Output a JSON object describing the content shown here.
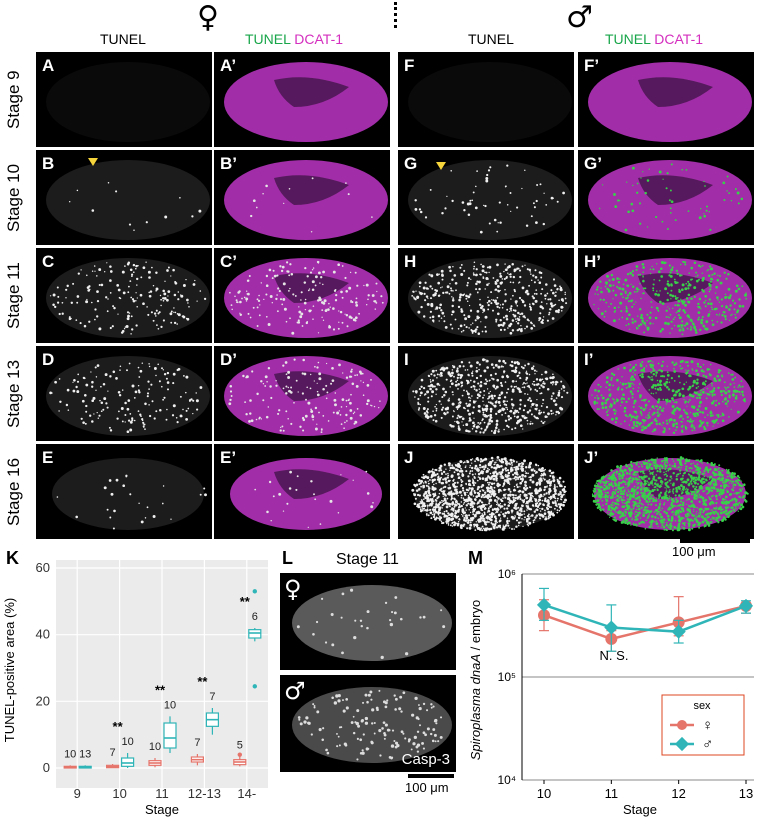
{
  "headers": {
    "female_symbol": "♀",
    "male_symbol": "♂",
    "tunel": "TUNEL",
    "tunel_green": "TUNEL",
    "dcat": "DCAT-1"
  },
  "stages": [
    "Stage 9",
    "Stage 10",
    "Stage 11",
    "Stage 13",
    "Stage 16"
  ],
  "panel_labels": {
    "col1": [
      "A",
      "B",
      "C",
      "D",
      "E"
    ],
    "col2": [
      "A’",
      "B’",
      "C’",
      "D’",
      "E’"
    ],
    "col3": [
      "F",
      "G",
      "H",
      "I",
      "J"
    ],
    "col4": [
      "F’",
      "G’",
      "H’",
      "I’",
      "J’"
    ]
  },
  "scale_top": "100 μm",
  "panelK": {
    "label": "K",
    "ylabel": "TUNEL-positive area (%)",
    "xlabel": "Stage",
    "chart_data": {
      "type": "box",
      "categories": [
        "9",
        "10",
        "11",
        "12-13",
        "14-"
      ],
      "ylim": [
        0,
        60
      ],
      "yticks": [
        0,
        20,
        40,
        60
      ],
      "series": [
        {
          "name": "♀",
          "color": "#e5746b",
          "boxes": [
            {
              "min": 0,
              "q1": 0,
              "median": 0.2,
              "q3": 0.5,
              "max": 0.8,
              "n": "10"
            },
            {
              "min": 0,
              "q1": 0.1,
              "median": 0.4,
              "q3": 0.8,
              "max": 1.2,
              "n": "7"
            },
            {
              "min": 0.2,
              "q1": 0.8,
              "median": 1.5,
              "q3": 2.2,
              "max": 3,
              "n": "10"
            },
            {
              "min": 0.8,
              "q1": 1.8,
              "median": 2.5,
              "q3": 3.3,
              "max": 4.2,
              "n": "7"
            },
            {
              "min": 0.5,
              "q1": 1.0,
              "median": 1.8,
              "q3": 2.5,
              "max": 3.5,
              "n": "5",
              "outliers": [
                4
              ]
            }
          ]
        },
        {
          "name": "♂",
          "color": "#2fb5b7",
          "boxes": [
            {
              "min": 0,
              "q1": 0,
              "median": 0.2,
              "q3": 0.5,
              "max": 0.8,
              "n": "13"
            },
            {
              "min": 0,
              "q1": 0.5,
              "median": 1.5,
              "q3": 3,
              "max": 4.5,
              "n": "10"
            },
            {
              "min": 4.5,
              "q1": 6,
              "median": 9,
              "q3": 13.5,
              "max": 15.5,
              "n": "10"
            },
            {
              "min": 10,
              "q1": 12.5,
              "median": 14.5,
              "q3": 16.5,
              "max": 18,
              "n": "7"
            },
            {
              "min": 38,
              "q1": 39,
              "median": 40.5,
              "q3": 41.5,
              "max": 42,
              "n": "6",
              "outliers": [
                53,
                24.5
              ]
            }
          ]
        }
      ],
      "significance": [
        "",
        "**",
        "**",
        "**",
        "**"
      ]
    }
  },
  "panelL": {
    "label": "L",
    "title": "Stage 11",
    "female": "♀",
    "male": "♂",
    "casp": "Casp-3",
    "scale": "100 μm"
  },
  "panelM": {
    "label": "M",
    "ylabel_italic1": "Spiroplasma",
    "ylabel_italic2": "dnaA",
    "ylabel_rest": " / embryo",
    "xlabel": "Stage",
    "ns": "N. S.",
    "legend_title": "sex",
    "chart_data": {
      "type": "line",
      "x": [
        "10",
        "11",
        "12",
        "13"
      ],
      "ylim_log10": [
        4,
        6
      ],
      "yticks": [
        "10⁴",
        "10⁵",
        "10⁶"
      ],
      "series": [
        {
          "name": "♀",
          "color": "#e5746b",
          "log_values": [
            5.6,
            5.37,
            5.53,
            5.69
          ],
          "log_err_hi": [
            5.75,
            5.45,
            5.78,
            5.72
          ],
          "log_err_lo": [
            5.45,
            5.25,
            5.4,
            5.62
          ]
        },
        {
          "name": "♂",
          "color": "#2fb5b7",
          "log_values": [
            5.7,
            5.48,
            5.44,
            5.69
          ],
          "log_err_hi": [
            5.86,
            5.7,
            5.55,
            5.74
          ],
          "log_err_lo": [
            5.55,
            5.25,
            5.33,
            5.62
          ]
        }
      ]
    }
  }
}
